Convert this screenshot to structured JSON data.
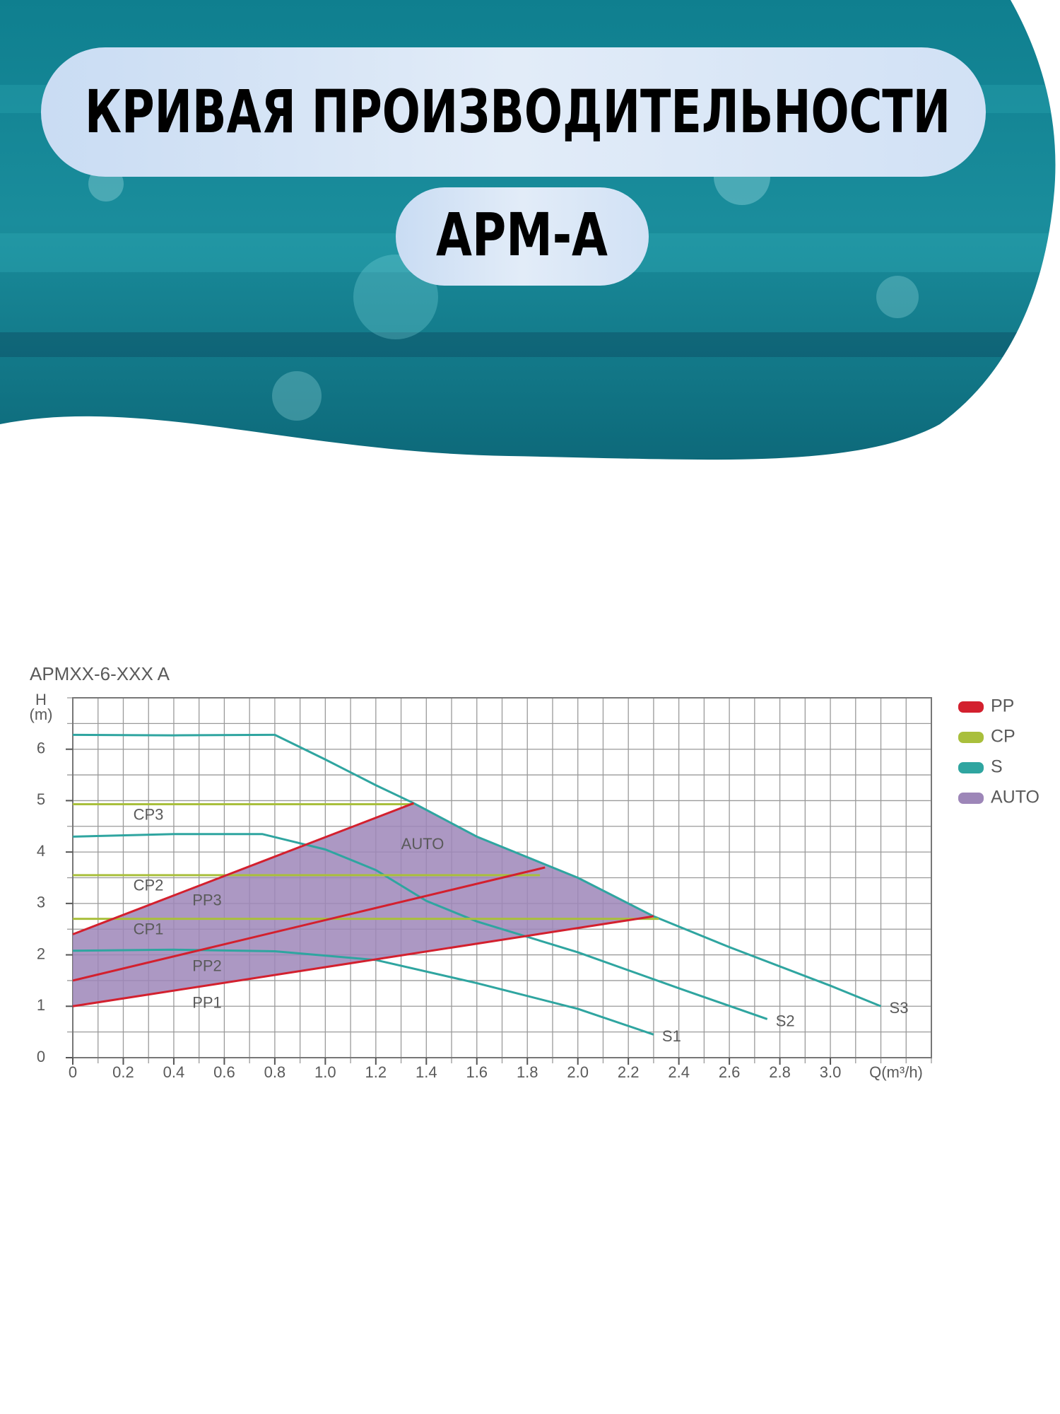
{
  "header": {
    "title": "КРИВАЯ ПРОИЗВОДИТЕЛЬНОСТИ",
    "subtitle": "APM-A"
  },
  "chart_data": {
    "type": "line",
    "title": "APMXX-6-XXX A",
    "ylabel": "H",
    "ylabel_unit": "(m)",
    "xlabel": "Q(m³/h)",
    "xlim": [
      0,
      3.4
    ],
    "ylim": [
      0,
      7
    ],
    "xticks": [
      0,
      0.2,
      0.4,
      0.6,
      0.8,
      {
        "value": 1,
        "label": "1.0"
      },
      1.2,
      1.4,
      1.6,
      1.8,
      {
        "value": 2,
        "label": "2.0"
      },
      2.2,
      2.4,
      2.6,
      2.8,
      {
        "value": 3,
        "label": "3.0"
      }
    ],
    "yticks": [
      0,
      1,
      2,
      3,
      4,
      5,
      6
    ],
    "xminor": 0.1,
    "yminor": 0.5,
    "grid": true,
    "legend": [
      {
        "name": "PP",
        "color": "#d3202e"
      },
      {
        "name": "CP",
        "color": "#a9bf3c"
      },
      {
        "name": "S",
        "color": "#2fa5a0"
      },
      {
        "name": "AUTO",
        "color": "#9d86b8"
      }
    ],
    "series": [
      {
        "name": "AUTO",
        "type": "area",
        "color": "#9d86b8",
        "x": [
          0,
          0,
          1.35,
          1.6,
          2.0,
          2.3
        ],
        "values": [
          1.0,
          2.4,
          4.95,
          4.3,
          3.5,
          2.75
        ]
      },
      {
        "name": "S3",
        "type": "line",
        "group": "S",
        "color": "#2fa5a0",
        "x": [
          0,
          0.4,
          0.8,
          1.0,
          1.2,
          1.35,
          1.6,
          2.0,
          2.3,
          2.6,
          3.0,
          3.2
        ],
        "values": [
          6.28,
          6.27,
          6.28,
          5.8,
          5.3,
          4.95,
          4.3,
          3.5,
          2.75,
          2.15,
          1.4,
          1.0
        ]
      },
      {
        "name": "S2",
        "type": "line",
        "group": "S",
        "color": "#2fa5a0",
        "x": [
          0,
          0.4,
          0.75,
          1.0,
          1.2,
          1.4,
          1.6,
          2.0,
          2.4,
          2.75
        ],
        "values": [
          4.3,
          4.35,
          4.35,
          4.05,
          3.65,
          3.05,
          2.65,
          2.05,
          1.35,
          0.75
        ]
      },
      {
        "name": "S1",
        "type": "line",
        "group": "S",
        "color": "#2fa5a0",
        "x": [
          0,
          0.4,
          0.8,
          1.2,
          1.6,
          2.0,
          2.3
        ],
        "values": [
          2.08,
          2.1,
          2.07,
          1.9,
          1.45,
          0.95,
          0.45
        ]
      },
      {
        "name": "CP3",
        "type": "line",
        "group": "CP",
        "color": "#a9bf3c",
        "x": [
          0,
          1.35
        ],
        "values": [
          4.93,
          4.93
        ]
      },
      {
        "name": "CP2",
        "type": "line",
        "group": "CP",
        "color": "#a9bf3c",
        "x": [
          0,
          1.85
        ],
        "values": [
          3.55,
          3.55
        ]
      },
      {
        "name": "CP1",
        "type": "line",
        "group": "CP",
        "color": "#a9bf3c",
        "x": [
          0,
          2.32
        ],
        "values": [
          2.7,
          2.7
        ]
      },
      {
        "name": "PP3",
        "type": "line",
        "group": "PP",
        "color": "#d3202e",
        "x": [
          0,
          1.35
        ],
        "values": [
          2.4,
          4.95
        ]
      },
      {
        "name": "PP2",
        "type": "line",
        "group": "PP",
        "color": "#d3202e",
        "x": [
          0,
          1.87
        ],
        "values": [
          1.5,
          3.7
        ]
      },
      {
        "name": "PP1",
        "type": "line",
        "group": "PP",
        "color": "#d3202e",
        "x": [
          0,
          2.3
        ],
        "values": [
          1.0,
          2.75
        ]
      }
    ]
  }
}
